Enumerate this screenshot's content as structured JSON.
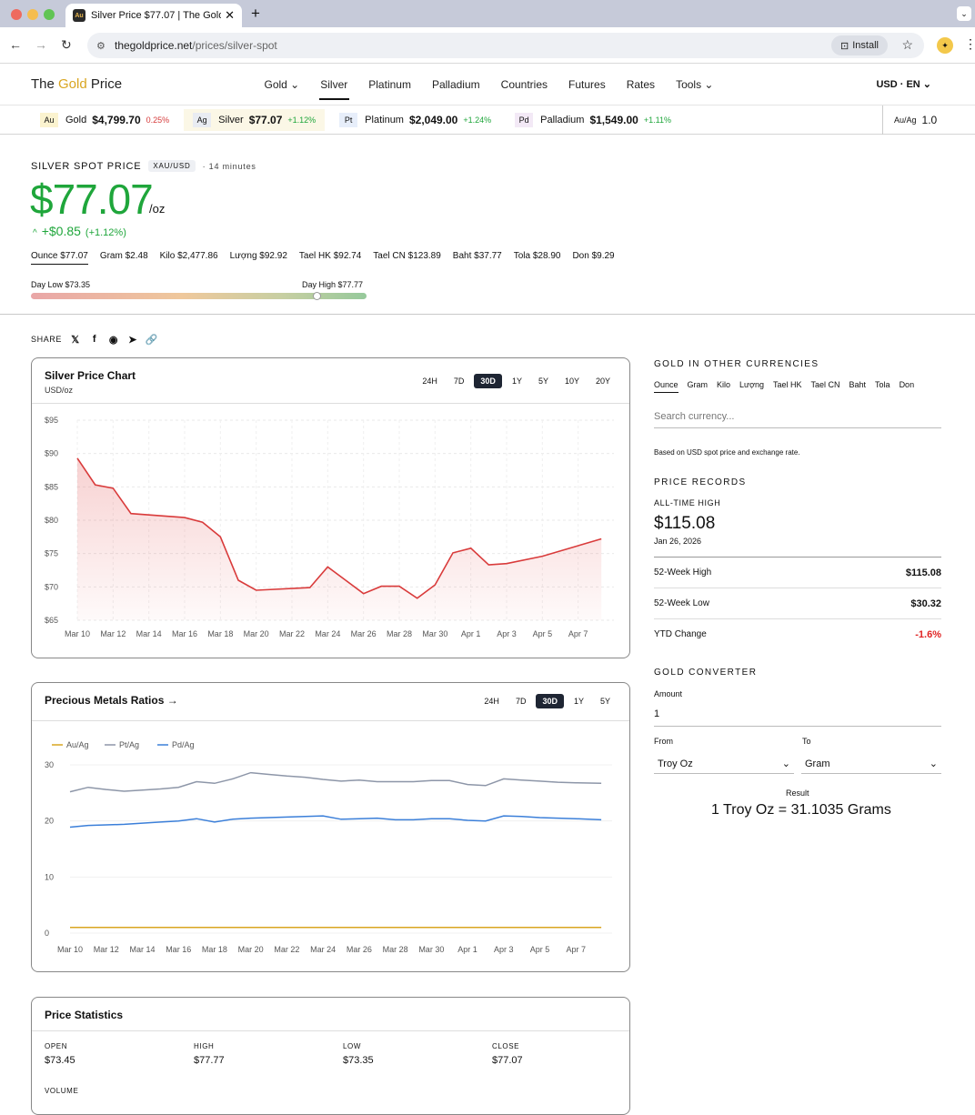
{
  "browser": {
    "tab_title": "Silver Price $77.07 | The Gold",
    "tab_favicon": "Au",
    "url_domain": "thegoldprice.net",
    "url_path": "/prices/silver-spot",
    "install_label": "Install"
  },
  "site": {
    "logo_prefix": "The ",
    "logo_gold": "Gold",
    "logo_suffix": " Price",
    "nav": [
      "Gold ⌄",
      "Silver",
      "Platinum",
      "Palladium",
      "Countries",
      "Futures",
      "Rates",
      "Tools ⌄"
    ],
    "currency_lang": "USD · EN ⌄"
  },
  "ticker": [
    {
      "sym": "Au",
      "name": "Gold",
      "price": "$4,799.70",
      "change": "0.25%",
      "color": "#d63b3b",
      "bg": "#fbf3cf"
    },
    {
      "sym": "Ag",
      "name": "Silver",
      "price": "$77.07",
      "change": "+1.12%",
      "color": "#1fa63b",
      "bg": "#e9ecf2"
    },
    {
      "sym": "Pt",
      "name": "Platinum",
      "price": "$2,049.00",
      "change": "+1.24%",
      "color": "#1fa63b",
      "bg": "#e7eefa"
    },
    {
      "sym": "Pd",
      "name": "Palladium",
      "price": "$1,549.00",
      "change": "+1.11%",
      "color": "#1fa63b",
      "bg": "#f3e9f6"
    }
  ],
  "ratio": {
    "label": "Au/Ag",
    "value": "1.0"
  },
  "spot": {
    "label": "SILVER SPOT PRICE",
    "badge": "XAU/USD",
    "updated": "· 14 minutes",
    "price": "$77.07",
    "per": "/oz",
    "change_arrow": "^",
    "change": "+$0.85",
    "change_pct": "(+1.12%)",
    "units": [
      "Ounce $77.07",
      "Gram $2.48",
      "Kilo $2,477.86",
      "Lượng $92.92",
      "Tael HK $92.74",
      "Tael CN $123.89",
      "Baht $37.77",
      "Tola $28.90",
      "Don $9.29"
    ],
    "day_low": "Day Low $73.35",
    "day_high": "Day High $77.77",
    "day_position": 0.85
  },
  "share": {
    "label": "SHARE",
    "icons": [
      "𝕏",
      "f",
      "◉",
      "➤",
      "🔗"
    ]
  },
  "price_chart": {
    "title": "Silver Price Chart",
    "subtitle": "USD/oz",
    "tabs": [
      "24H",
      "7D",
      "30D",
      "1Y",
      "5Y",
      "10Y",
      "20Y"
    ],
    "active": "30D"
  },
  "ratio_chart": {
    "title": "Precious Metals Ratios →",
    "tabs": [
      "24H",
      "7D",
      "30D",
      "1Y",
      "5Y"
    ],
    "active": "30D"
  },
  "stats": {
    "title": "Price Statistics",
    "items": [
      {
        "label": "OPEN",
        "value": "$73.45"
      },
      {
        "label": "HIGH",
        "value": "$77.77"
      },
      {
        "label": "LOW",
        "value": "$73.35"
      },
      {
        "label": "CLOSE",
        "value": "$77.07"
      }
    ],
    "next_label": "VOLUME"
  },
  "currencies": {
    "title": "GOLD IN OTHER CURRENCIES",
    "tabs": [
      "Ounce",
      "Gram",
      "Kilo",
      "Lượng",
      "Tael HK",
      "Tael CN",
      "Baht",
      "Tola",
      "Don"
    ],
    "search_placeholder": "Search currency...",
    "note": "Based on USD spot price and exchange rate."
  },
  "records": {
    "title": "PRICE RECORDS",
    "ath_label": "ALL-TIME HIGH",
    "ath_value": "$115.08",
    "ath_date": "Jan 26, 2026",
    "rows": [
      {
        "label": "52-Week High",
        "value": "$115.08",
        "color": "#111"
      },
      {
        "label": "52-Week Low",
        "value": "$30.32",
        "color": "#111"
      },
      {
        "label": "YTD Change",
        "value": "-1.6%",
        "color": "#e02424"
      }
    ]
  },
  "converter": {
    "title": "GOLD CONVERTER",
    "amount_label": "Amount",
    "amount": "1",
    "from_label": "From",
    "from": "Troy Oz",
    "to_label": "To",
    "to": "Gram",
    "result_label": "Result",
    "result": "1 Troy Oz = 31.1035 Grams"
  },
  "chart_data": [
    {
      "type": "area",
      "title": "Silver Price Chart",
      "ylabel": "USD/oz",
      "ylim": [
        65,
        95
      ],
      "yticks": [
        "$95",
        "$90",
        "$85",
        "$80",
        "$75",
        "$70",
        "$65"
      ],
      "xticks": [
        "Mar 10",
        "Mar 12",
        "Mar 14",
        "Mar 16",
        "Mar 18",
        "Mar 20",
        "Mar 22",
        "Mar 24",
        "Mar 26",
        "Mar 28",
        "Mar 30",
        "Apr 1",
        "Apr 3",
        "Apr 5",
        "Apr 7"
      ],
      "x": [
        0,
        1,
        2,
        3,
        6,
        7,
        8,
        9,
        10,
        13,
        14,
        15,
        16,
        17,
        18,
        19,
        20,
        21,
        22,
        23,
        24,
        26,
        29.3
      ],
      "values": [
        89.3,
        85.3,
        84.8,
        81.0,
        80.4,
        79.7,
        77.5,
        71.0,
        69.5,
        69.9,
        73.0,
        71.0,
        69.0,
        70.1,
        70.1,
        68.3,
        70.3,
        75.1,
        75.8,
        73.3,
        73.5,
        74.6,
        77.2
      ],
      "color": "#d93b3b"
    },
    {
      "type": "line",
      "title": "Precious Metals Ratios",
      "ylim": [
        0,
        30
      ],
      "yticks": [
        "30",
        "20",
        "10",
        "0"
      ],
      "xticks": [
        "Mar 10",
        "Mar 12",
        "Mar 14",
        "Mar 16",
        "Mar 18",
        "Mar 20",
        "Mar 22",
        "Mar 24",
        "Mar 26",
        "Mar 28",
        "Mar 30",
        "Apr 1",
        "Apr 3",
        "Apr 5",
        "Apr 7"
      ],
      "x": [
        0,
        1,
        2,
        3,
        4,
        5,
        6,
        7,
        8,
        9,
        10,
        11,
        12,
        13,
        14,
        15,
        16,
        17,
        18,
        19,
        20,
        21,
        22,
        23,
        24,
        25,
        26,
        27,
        28,
        29.4
      ],
      "series": [
        {
          "name": "Au/Ag",
          "color": "#d9a520",
          "values": [
            1,
            1,
            1,
            1,
            1,
            1,
            1,
            1,
            1,
            1,
            1,
            1,
            1,
            1,
            1,
            1,
            1,
            1,
            1,
            1,
            1,
            1,
            1,
            1,
            1,
            1,
            1,
            1,
            1,
            1
          ]
        },
        {
          "name": "Pt/Ag",
          "color": "#8d96a8",
          "values": [
            25.2,
            26.0,
            25.6,
            25.3,
            25.5,
            25.7,
            26.0,
            27.0,
            26.7,
            27.5,
            28.6,
            28.3,
            28.0,
            27.8,
            27.4,
            27.1,
            27.3,
            27.0,
            27.0,
            27.0,
            27.2,
            27.2,
            26.5,
            26.3,
            27.5,
            27.3,
            27.1,
            26.9,
            26.8,
            26.7
          ]
        },
        {
          "name": "Pd/Ag",
          "color": "#3b7fd9",
          "values": [
            18.9,
            19.2,
            19.3,
            19.4,
            19.6,
            19.8,
            20.0,
            20.4,
            19.8,
            20.3,
            20.5,
            20.6,
            20.7,
            20.8,
            20.9,
            20.3,
            20.4,
            20.5,
            20.2,
            20.2,
            20.4,
            20.4,
            20.1,
            20.0,
            20.9,
            20.8,
            20.6,
            20.5,
            20.4,
            20.2
          ]
        }
      ]
    }
  ]
}
